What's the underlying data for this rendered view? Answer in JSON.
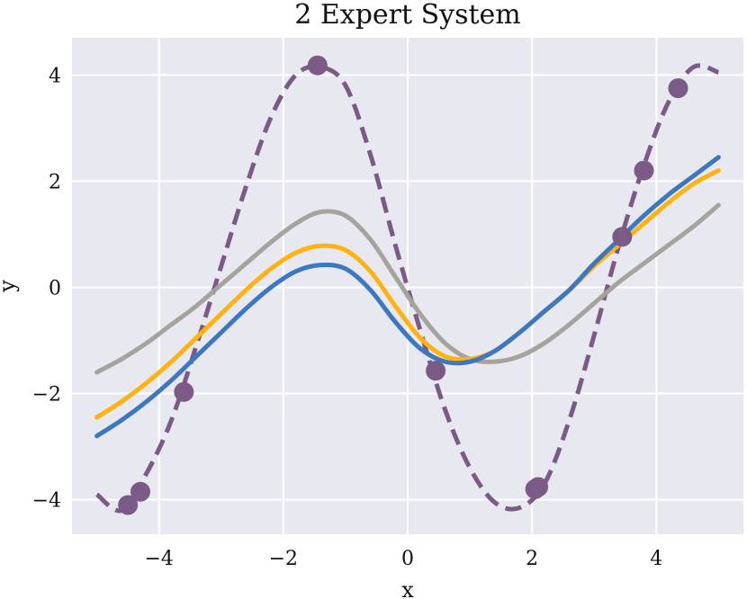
{
  "chart_data": {
    "type": "line",
    "title": "2 Expert System",
    "xlabel": "x",
    "ylabel": "y",
    "xlim": [
      -5.4,
      5.4
    ],
    "ylim": [
      -4.65,
      4.7
    ],
    "xticks": [
      -4,
      -2,
      0,
      2,
      4
    ],
    "yticks": [
      -4,
      -2,
      0,
      2,
      4
    ],
    "xtick_labels": [
      "−4",
      "−2",
      "0",
      "2",
      "4"
    ],
    "ytick_labels": [
      "−4",
      "−2",
      "0",
      "2",
      "4"
    ],
    "grid": true,
    "legend": "none",
    "colors": {
      "background": "#e8e8f0",
      "grid": "#ffffff",
      "target": "#7b5a87",
      "points": "#7b5a87",
      "blue": "#3b78c0",
      "orange": "#ffb30f",
      "gray": "#a5a39b"
    },
    "series": [
      {
        "style": "dashed",
        "color": "#7b5a87",
        "x": [
          -5.0,
          -4.6,
          -4.2,
          -3.8,
          -3.4,
          -3.0,
          -2.6,
          -2.2,
          -1.8,
          -1.4,
          -1.0,
          -0.6,
          -0.2,
          0.2,
          0.6,
          1.0,
          1.4,
          1.8,
          2.2,
          2.6,
          3.0,
          3.4,
          3.8,
          4.2,
          4.6,
          5.0
        ],
        "y": [
          -3.9,
          -4.2,
          -3.5,
          -2.5,
          -1.1,
          0.4,
          1.9,
          3.2,
          4.0,
          4.15,
          3.8,
          2.5,
          0.8,
          -0.8,
          -2.3,
          -3.4,
          -4.05,
          -4.15,
          -3.7,
          -2.5,
          -0.9,
          0.8,
          2.3,
          3.5,
          4.15,
          4.05
        ]
      },
      {
        "style": "solid",
        "color": "#a5a39b",
        "x": [
          -5.0,
          -4.6,
          -4.2,
          -3.8,
          -3.4,
          -3.0,
          -2.6,
          -2.2,
          -1.8,
          -1.4,
          -1.0,
          -0.6,
          -0.2,
          0.2,
          0.6,
          1.0,
          1.4,
          1.8,
          2.2,
          2.6,
          3.0,
          3.4,
          3.8,
          4.2,
          4.6,
          5.0
        ],
        "y": [
          -1.6,
          -1.35,
          -1.05,
          -0.7,
          -0.35,
          0.05,
          0.45,
          0.85,
          1.2,
          1.42,
          1.35,
          0.9,
          0.2,
          -0.5,
          -1.05,
          -1.35,
          -1.4,
          -1.3,
          -1.05,
          -0.7,
          -0.3,
          0.1,
          0.45,
          0.8,
          1.15,
          1.55
        ]
      },
      {
        "style": "solid",
        "color": "#ffb30f",
        "x": [
          -5.0,
          -4.6,
          -4.2,
          -3.8,
          -3.4,
          -3.0,
          -2.6,
          -2.2,
          -1.8,
          -1.4,
          -1.0,
          -0.6,
          -0.2,
          0.2,
          0.6,
          1.0,
          1.4,
          1.8,
          2.2,
          2.6,
          3.0,
          3.4,
          3.8,
          4.2,
          4.6,
          5.0
        ],
        "y": [
          -2.45,
          -2.15,
          -1.8,
          -1.4,
          -0.95,
          -0.5,
          -0.05,
          0.35,
          0.65,
          0.78,
          0.7,
          0.3,
          -0.35,
          -0.95,
          -1.3,
          -1.35,
          -1.2,
          -0.85,
          -0.45,
          -0.05,
          0.4,
          0.8,
          1.2,
          1.6,
          1.95,
          2.2
        ]
      },
      {
        "style": "solid",
        "color": "#3b78c0",
        "x": [
          -5.0,
          -4.6,
          -4.2,
          -3.8,
          -3.4,
          -3.0,
          -2.6,
          -2.2,
          -1.8,
          -1.4,
          -1.0,
          -0.6,
          -0.2,
          0.2,
          0.6,
          1.0,
          1.4,
          1.8,
          2.2,
          2.6,
          3.0,
          3.4,
          3.8,
          4.2,
          4.6,
          5.0
        ],
        "y": [
          -2.8,
          -2.5,
          -2.15,
          -1.75,
          -1.3,
          -0.85,
          -0.4,
          0.0,
          0.3,
          0.42,
          0.35,
          -0.05,
          -0.65,
          -1.15,
          -1.4,
          -1.4,
          -1.2,
          -0.85,
          -0.45,
          -0.05,
          0.45,
          0.9,
          1.35,
          1.75,
          2.1,
          2.45
        ]
      }
    ],
    "points": {
      "color": "#7b5a87",
      "x": [
        -4.5,
        -4.3,
        -3.6,
        -1.45,
        0.45,
        2.05,
        2.1,
        3.45,
        3.8,
        4.35
      ],
      "y": [
        -4.1,
        -3.85,
        -1.97,
        4.18,
        -1.57,
        -3.8,
        -3.76,
        0.95,
        2.2,
        3.75
      ]
    }
  }
}
